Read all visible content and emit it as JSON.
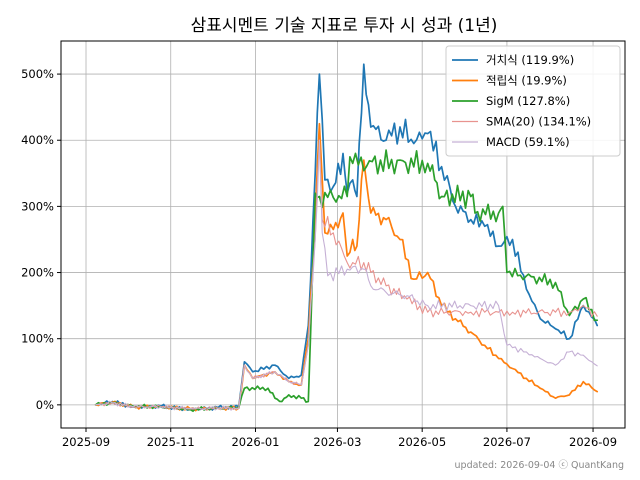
{
  "footer": "updated: 2026-09-04 ⓒ QuantKang",
  "chart_data": {
    "type": "line",
    "title": "삼표시멘트 기술 지표로 투자 시 성과 (1년)",
    "xlabel": "",
    "ylabel": "",
    "x_ticks": [
      "2025-09",
      "2025-11",
      "2026-01",
      "2026-03",
      "2026-05",
      "2026-07",
      "2026-09"
    ],
    "y_ticks": [
      "0%",
      "100%",
      "200%",
      "300%",
      "400%",
      "500%"
    ],
    "ylim": [
      -35,
      550
    ],
    "xlim": [
      "2025-08-14",
      "2026-09-24"
    ],
    "grid": true,
    "legend_position": "top-right",
    "series": [
      {
        "name": "거치식 (119.9%)",
        "color": "#1f77b4",
        "points": [
          [
            "2025-09-08",
            0
          ],
          [
            "2025-09-20",
            5
          ],
          [
            "2025-10-05",
            -3
          ],
          [
            "2025-10-25",
            -2
          ],
          [
            "2025-11-15",
            -7
          ],
          [
            "2025-12-05",
            -4
          ],
          [
            "2025-12-20",
            -3
          ],
          [
            "2025-12-24",
            65
          ],
          [
            "2025-12-30",
            50
          ],
          [
            "2026-01-15",
            60
          ],
          [
            "2026-01-25",
            40
          ],
          [
            "2026-02-03",
            45
          ],
          [
            "2026-02-08",
            120
          ],
          [
            "2026-02-13",
            350
          ],
          [
            "2026-02-16",
            500
          ],
          [
            "2026-02-20",
            340
          ],
          [
            "2026-02-26",
            330
          ],
          [
            "2026-03-05",
            380
          ],
          [
            "2026-03-08",
            320
          ],
          [
            "2026-03-12",
            340
          ],
          [
            "2026-03-15",
            315
          ],
          [
            "2026-03-20",
            515
          ],
          [
            "2026-03-25",
            420
          ],
          [
            "2026-04-05",
            400
          ],
          [
            "2026-04-15",
            420
          ],
          [
            "2026-04-25",
            395
          ],
          [
            "2026-05-05",
            410
          ],
          [
            "2026-05-15",
            360
          ],
          [
            "2026-05-25",
            300
          ],
          [
            "2026-06-05",
            280
          ],
          [
            "2026-06-15",
            270
          ],
          [
            "2026-06-25",
            240
          ],
          [
            "2026-07-05",
            250
          ],
          [
            "2026-07-15",
            175
          ],
          [
            "2026-07-25",
            130
          ],
          [
            "2026-08-05",
            115
          ],
          [
            "2026-08-15",
            100
          ],
          [
            "2026-08-25",
            150
          ],
          [
            "2026-09-04",
            120
          ]
        ]
      },
      {
        "name": "적립식 (19.9%)",
        "color": "#ff7f0e",
        "points": [
          [
            "2025-09-08",
            0
          ],
          [
            "2025-09-20",
            4
          ],
          [
            "2025-10-05",
            -3
          ],
          [
            "2025-10-25",
            -3
          ],
          [
            "2025-11-15",
            -6
          ],
          [
            "2025-12-05",
            -5
          ],
          [
            "2025-12-20",
            -5
          ],
          [
            "2025-12-24",
            60
          ],
          [
            "2025-12-30",
            40
          ],
          [
            "2026-01-15",
            50
          ],
          [
            "2026-01-25",
            35
          ],
          [
            "2026-02-03",
            30
          ],
          [
            "2026-02-08",
            100
          ],
          [
            "2026-02-13",
            280
          ],
          [
            "2026-02-16",
            425
          ],
          [
            "2026-02-20",
            260
          ],
          [
            "2026-02-26",
            265
          ],
          [
            "2026-03-05",
            290
          ],
          [
            "2026-03-08",
            225
          ],
          [
            "2026-03-12",
            250
          ],
          [
            "2026-03-15",
            240
          ],
          [
            "2026-03-20",
            370
          ],
          [
            "2026-03-25",
            290
          ],
          [
            "2026-04-05",
            280
          ],
          [
            "2026-04-15",
            250
          ],
          [
            "2026-04-25",
            190
          ],
          [
            "2026-05-05",
            200
          ],
          [
            "2026-05-15",
            150
          ],
          [
            "2026-05-25",
            130
          ],
          [
            "2026-06-05",
            110
          ],
          [
            "2026-06-15",
            90
          ],
          [
            "2026-06-25",
            70
          ],
          [
            "2026-07-05",
            55
          ],
          [
            "2026-07-15",
            40
          ],
          [
            "2026-07-25",
            25
          ],
          [
            "2026-08-05",
            10
          ],
          [
            "2026-08-15",
            15
          ],
          [
            "2026-08-25",
            35
          ],
          [
            "2026-09-04",
            20
          ]
        ]
      },
      {
        "name": "SigM (127.8%)",
        "color": "#2ca02c",
        "points": [
          [
            "2025-09-08",
            0
          ],
          [
            "2025-09-20",
            3
          ],
          [
            "2025-10-05",
            -2
          ],
          [
            "2025-10-25",
            -3
          ],
          [
            "2025-11-15",
            -7
          ],
          [
            "2025-12-05",
            -5
          ],
          [
            "2025-12-20",
            -4
          ],
          [
            "2025-12-24",
            25
          ],
          [
            "2026-01-10",
            25
          ],
          [
            "2026-01-15",
            10
          ],
          [
            "2026-01-20",
            5
          ],
          [
            "2026-01-25",
            15
          ],
          [
            "2026-02-03",
            10
          ],
          [
            "2026-02-08",
            5
          ],
          [
            "2026-02-13",
            320
          ],
          [
            "2026-02-16",
            315
          ],
          [
            "2026-03-08",
            315
          ],
          [
            "2026-03-10",
            375
          ],
          [
            "2026-03-12",
            365
          ],
          [
            "2026-05-05",
            365
          ],
          [
            "2026-05-10",
            340
          ],
          [
            "2026-05-15",
            315
          ],
          [
            "2026-06-05",
            315
          ],
          [
            "2026-06-08",
            290
          ],
          [
            "2026-06-25",
            290
          ],
          [
            "2026-06-28",
            300
          ],
          [
            "2026-07-01",
            200
          ],
          [
            "2026-08-05",
            185
          ],
          [
            "2026-08-15",
            135
          ],
          [
            "2026-08-25",
            160
          ],
          [
            "2026-09-04",
            128
          ]
        ]
      },
      {
        "name": "SMA(20) (134.1%)",
        "color": "#e8938f",
        "points": [
          [
            "2025-09-08",
            0
          ],
          [
            "2025-09-20",
            3
          ],
          [
            "2025-10-05",
            -3
          ],
          [
            "2025-10-25",
            -3
          ],
          [
            "2025-11-15",
            -6
          ],
          [
            "2025-12-05",
            -5
          ],
          [
            "2025-12-20",
            -5
          ],
          [
            "2025-12-24",
            60
          ],
          [
            "2025-12-30",
            40
          ],
          [
            "2026-01-15",
            50
          ],
          [
            "2026-01-25",
            35
          ],
          [
            "2026-02-03",
            30
          ],
          [
            "2026-02-08",
            90
          ],
          [
            "2026-02-13",
            250
          ],
          [
            "2026-02-16",
            400
          ],
          [
            "2026-02-18",
            280
          ],
          [
            "2026-02-26",
            260
          ],
          [
            "2026-03-08",
            215
          ],
          [
            "2026-03-12",
            215
          ],
          [
            "2026-03-20",
            215
          ],
          [
            "2026-03-25",
            200
          ],
          [
            "2026-04-05",
            180
          ],
          [
            "2026-04-20",
            160
          ],
          [
            "2026-05-05",
            140
          ],
          [
            "2026-06-05",
            140
          ],
          [
            "2026-06-15",
            140
          ],
          [
            "2026-06-25",
            140
          ],
          [
            "2026-07-05",
            140
          ],
          [
            "2026-08-05",
            140
          ],
          [
            "2026-08-15",
            140
          ],
          [
            "2026-08-25",
            150
          ],
          [
            "2026-09-04",
            134
          ]
        ]
      },
      {
        "name": "MACD (59.1%)",
        "color": "#c5b0d5",
        "points": [
          [
            "2025-09-08",
            0
          ],
          [
            "2025-09-20",
            3
          ],
          [
            "2025-10-05",
            -3
          ],
          [
            "2025-10-25",
            -3
          ],
          [
            "2025-11-15",
            -6
          ],
          [
            "2025-12-05",
            -5
          ],
          [
            "2025-12-20",
            -5
          ],
          [
            "2025-12-24",
            60
          ],
          [
            "2025-12-30",
            40
          ],
          [
            "2026-01-15",
            50
          ],
          [
            "2026-01-25",
            35
          ],
          [
            "2026-02-03",
            30
          ],
          [
            "2026-02-08",
            90
          ],
          [
            "2026-02-13",
            250
          ],
          [
            "2026-02-16",
            400
          ],
          [
            "2026-02-18",
            260
          ],
          [
            "2026-02-22",
            195
          ],
          [
            "2026-03-08",
            205
          ],
          [
            "2026-03-20",
            205
          ],
          [
            "2026-03-25",
            180
          ],
          [
            "2026-04-05",
            170
          ],
          [
            "2026-04-20",
            165
          ],
          [
            "2026-05-05",
            150
          ],
          [
            "2026-06-05",
            150
          ],
          [
            "2026-06-25",
            150
          ],
          [
            "2026-07-01",
            90
          ],
          [
            "2026-07-15",
            80
          ],
          [
            "2026-07-25",
            70
          ],
          [
            "2026-08-05",
            60
          ],
          [
            "2026-08-15",
            80
          ],
          [
            "2026-08-25",
            75
          ],
          [
            "2026-09-04",
            59
          ]
        ]
      }
    ]
  }
}
